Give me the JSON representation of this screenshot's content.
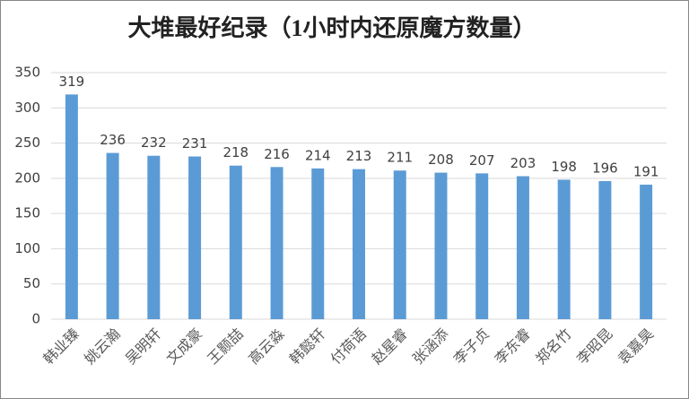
{
  "chart_data": {
    "type": "bar",
    "title": "大堆最好纪录（1小时内还原魔方数量）",
    "categories": [
      "韩业臻",
      "姚云瀚",
      "吴明轩",
      "文成豪",
      "王颢喆",
      "高云淼",
      "韩懿轩",
      "付荷语",
      "赵星睿",
      "张涵添",
      "李子贞",
      "李东睿",
      "郑名竹",
      "李昭昆",
      "袁嘉昊"
    ],
    "values": [
      319,
      236,
      232,
      231,
      218,
      216,
      214,
      213,
      211,
      208,
      207,
      203,
      198,
      196,
      191
    ],
    "color": "#5b9bd5",
    "ylim": [
      0,
      350
    ],
    "yticks": [
      0,
      50,
      100,
      150,
      200,
      250,
      300,
      350
    ],
    "grid": true
  }
}
